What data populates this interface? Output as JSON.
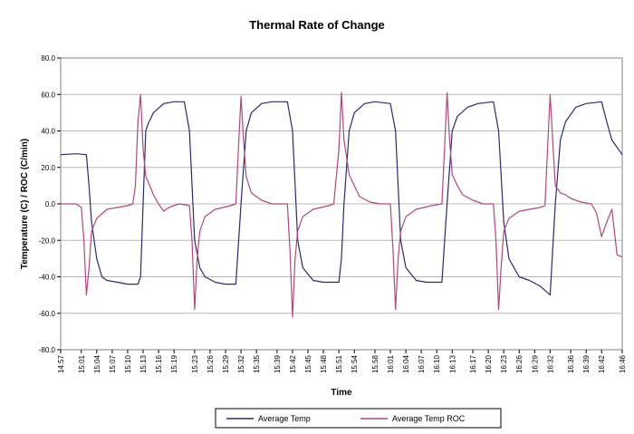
{
  "chart_data": {
    "type": "line",
    "title": "Thermal Rate of Change",
    "xlabel": "Time",
    "ylabel": "Temperature (C) / ROC (C/min)",
    "ylim": [
      -80.0,
      80.0
    ],
    "yticks": [
      "80.0",
      "60.0",
      "40.0",
      "20.0",
      "0.0",
      "-20.0",
      "-40.0",
      "-60.0",
      "-80.0"
    ],
    "xlim": [
      "14:57",
      "16:46"
    ],
    "xticks": [
      "14:57",
      "15:01",
      "15:04",
      "15:07",
      "15:10",
      "15:13",
      "15:16",
      "15:19",
      "15:23",
      "15:26",
      "15:29",
      "15:32",
      "15:35",
      "15:39",
      "15:42",
      "15:45",
      "15:48",
      "15:51",
      "15:54",
      "15:58",
      "16:01",
      "16:04",
      "16:07",
      "16:10",
      "16:13",
      "16:17",
      "16:20",
      "16:23",
      "16:26",
      "16:29",
      "16:32",
      "16:36",
      "16:39",
      "16:42",
      "16:46"
    ],
    "grid": "horizontal",
    "legend_position": "bottom",
    "series": [
      {
        "name": "Average Temp",
        "color": "#2a2a6e",
        "points": [
          [
            "14:57",
            27
          ],
          [
            "15:00",
            27.5
          ],
          [
            "15:02",
            27
          ],
          [
            "15:02:30",
            10
          ],
          [
            "15:03",
            -10
          ],
          [
            "15:04",
            -30
          ],
          [
            "15:05",
            -40
          ],
          [
            "15:06",
            -42
          ],
          [
            "15:08",
            -43
          ],
          [
            "15:10",
            -44
          ],
          [
            "15:12",
            -44
          ],
          [
            "15:12:30",
            -40
          ],
          [
            "15:13",
            0
          ],
          [
            "15:13:30",
            40
          ],
          [
            "15:14",
            44
          ],
          [
            "15:15",
            50
          ],
          [
            "15:17",
            55
          ],
          [
            "15:19",
            56
          ],
          [
            "15:21",
            56
          ],
          [
            "15:22",
            40
          ],
          [
            "15:23",
            -20
          ],
          [
            "15:24",
            -35
          ],
          [
            "15:25",
            -40
          ],
          [
            "15:27",
            -43
          ],
          [
            "15:29",
            -44
          ],
          [
            "15:31",
            -44
          ],
          [
            "15:32",
            0
          ],
          [
            "15:33",
            40
          ],
          [
            "15:34",
            50
          ],
          [
            "15:36",
            55
          ],
          [
            "15:38",
            56
          ],
          [
            "15:41",
            56
          ],
          [
            "15:42",
            40
          ],
          [
            "15:43",
            -20
          ],
          [
            "15:44",
            -35
          ],
          [
            "15:46",
            -42
          ],
          [
            "15:48",
            -43
          ],
          [
            "15:51",
            -43
          ],
          [
            "15:51:30",
            -30
          ],
          [
            "15:52",
            0
          ],
          [
            "15:53",
            40
          ],
          [
            "15:54",
            50
          ],
          [
            "15:56",
            55
          ],
          [
            "15:58",
            56
          ],
          [
            "16:01",
            55
          ],
          [
            "16:02",
            40
          ],
          [
            "16:03",
            -20
          ],
          [
            "16:04",
            -35
          ],
          [
            "16:06",
            -42
          ],
          [
            "16:08",
            -43
          ],
          [
            "16:11",
            -43
          ],
          [
            "16:12",
            0
          ],
          [
            "16:13",
            40
          ],
          [
            "16:14",
            48
          ],
          [
            "16:16",
            53
          ],
          [
            "16:18",
            55
          ],
          [
            "16:21",
            56
          ],
          [
            "16:22",
            40
          ],
          [
            "16:23",
            -10
          ],
          [
            "16:24",
            -30
          ],
          [
            "16:26",
            -40
          ],
          [
            "16:28",
            -42
          ],
          [
            "16:30",
            -45
          ],
          [
            "16:32",
            -50
          ],
          [
            "16:33",
            0
          ],
          [
            "16:34",
            35
          ],
          [
            "16:35",
            45
          ],
          [
            "16:37",
            53
          ],
          [
            "16:39",
            55
          ],
          [
            "16:42",
            56
          ],
          [
            "16:43",
            45
          ],
          [
            "16:44",
            35
          ],
          [
            "16:46",
            27
          ]
        ]
      },
      {
        "name": "Average Temp ROC",
        "color": "#b0477e",
        "points": [
          [
            "14:57",
            0
          ],
          [
            "15:00",
            0
          ],
          [
            "15:01",
            -2
          ],
          [
            "15:01:30",
            -20
          ],
          [
            "15:02",
            -50
          ],
          [
            "15:02:30",
            -35
          ],
          [
            "15:03",
            -15
          ],
          [
            "15:04",
            -8
          ],
          [
            "15:06",
            -3
          ],
          [
            "15:08",
            -2
          ],
          [
            "15:10",
            -1
          ],
          [
            "15:11",
            0
          ],
          [
            "15:11:30",
            10
          ],
          [
            "15:12",
            45
          ],
          [
            "15:12:30",
            60
          ],
          [
            "15:13",
            30
          ],
          [
            "15:13:30",
            15
          ],
          [
            "15:14",
            12
          ],
          [
            "15:15",
            5
          ],
          [
            "15:16",
            0
          ],
          [
            "15:17",
            -4
          ],
          [
            "15:18",
            -2
          ],
          [
            "15:20",
            0
          ],
          [
            "15:22",
            -1
          ],
          [
            "15:22:30",
            -20
          ],
          [
            "15:23",
            -58
          ],
          [
            "15:23:30",
            -30
          ],
          [
            "15:24",
            -15
          ],
          [
            "15:25",
            -7
          ],
          [
            "15:27",
            -3
          ],
          [
            "15:30",
            -1
          ],
          [
            "15:31",
            0
          ],
          [
            "15:31:30",
            30
          ],
          [
            "15:32",
            59
          ],
          [
            "15:32:30",
            35
          ],
          [
            "15:33",
            15
          ],
          [
            "15:34",
            6
          ],
          [
            "15:36",
            2
          ],
          [
            "15:38",
            0
          ],
          [
            "15:41",
            0
          ],
          [
            "15:41:30",
            -25
          ],
          [
            "15:42",
            -62
          ],
          [
            "15:42:30",
            -30
          ],
          [
            "15:43",
            -15
          ],
          [
            "15:44",
            -7
          ],
          [
            "15:46",
            -3
          ],
          [
            "15:49",
            -1
          ],
          [
            "15:50",
            0
          ],
          [
            "15:51",
            30
          ],
          [
            "15:51:30",
            61
          ],
          [
            "15:52",
            35
          ],
          [
            "15:53",
            16
          ],
          [
            "15:54",
            10
          ],
          [
            "15:55",
            4
          ],
          [
            "15:57",
            1
          ],
          [
            "15:59",
            0
          ],
          [
            "16:01",
            0
          ],
          [
            "16:01:30",
            -25
          ],
          [
            "16:02",
            -58
          ],
          [
            "16:02:30",
            -30
          ],
          [
            "16:03",
            -15
          ],
          [
            "16:04",
            -7
          ],
          [
            "16:06",
            -3
          ],
          [
            "16:09",
            -1
          ],
          [
            "16:11",
            0
          ],
          [
            "16:11:30",
            30
          ],
          [
            "16:12",
            61
          ],
          [
            "16:12:30",
            35
          ],
          [
            "16:13",
            16
          ],
          [
            "16:14",
            10
          ],
          [
            "16:15",
            5
          ],
          [
            "16:17",
            2
          ],
          [
            "16:19",
            0
          ],
          [
            "16:21",
            0
          ],
          [
            "16:21:30",
            -20
          ],
          [
            "16:22",
            -58
          ],
          [
            "16:22:30",
            -35
          ],
          [
            "16:23",
            -15
          ],
          [
            "16:24",
            -8
          ],
          [
            "16:26",
            -4
          ],
          [
            "16:28",
            -3
          ],
          [
            "16:30",
            -2
          ],
          [
            "16:31",
            -1
          ],
          [
            "16:31:30",
            30
          ],
          [
            "16:32",
            60
          ],
          [
            "16:32:30",
            35
          ],
          [
            "16:33",
            10
          ],
          [
            "16:34",
            6
          ],
          [
            "16:35",
            5
          ],
          [
            "16:36",
            3
          ],
          [
            "16:38",
            1
          ],
          [
            "16:40",
            0
          ],
          [
            "16:41",
            -5
          ],
          [
            "16:42",
            -18
          ],
          [
            "16:43",
            -10
          ],
          [
            "16:44",
            -3
          ],
          [
            "16:45",
            -28
          ],
          [
            "16:46",
            -29
          ]
        ]
      }
    ]
  }
}
